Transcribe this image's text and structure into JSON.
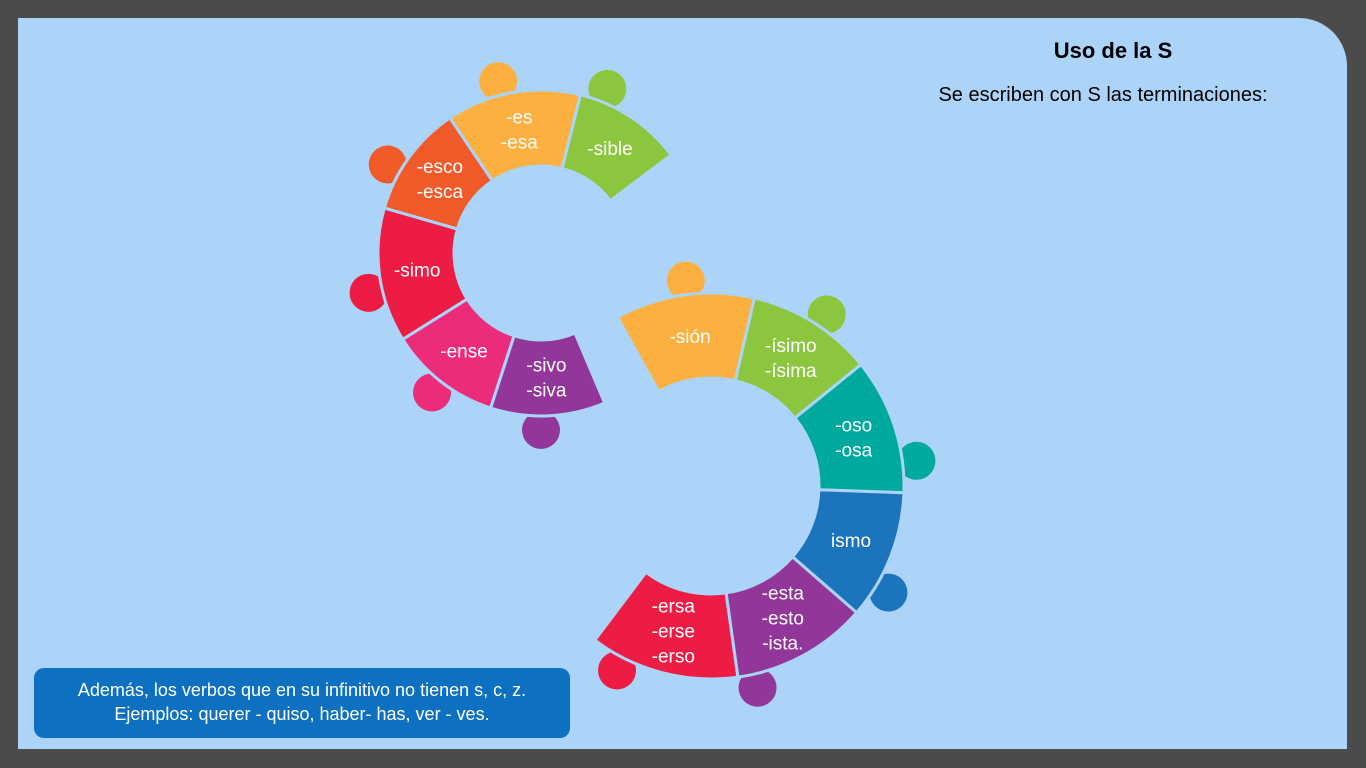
{
  "slide": {
    "title": "Uso de la S",
    "subtitle": "Se escriben con S las terminaciones:",
    "note": {
      "line1": "Además, los verbos que en su infinitivo no tienen s, c, z.",
      "line2": "Ejemplos:  querer - quiso, haber- has, ver - ves."
    }
  },
  "colors": {
    "background": "#acd4f8",
    "frame": "#4b4b4b",
    "note_box": "#0d70c0",
    "text_on_pieces": "#ffffff"
  },
  "pieces": [
    {
      "id": "sible",
      "lines": [
        "-sible"
      ],
      "color": "#8cc63f"
    },
    {
      "id": "es",
      "lines": [
        "-es",
        "-esa"
      ],
      "color": "#fbb040"
    },
    {
      "id": "esco",
      "lines": [
        "-esco",
        "-esca"
      ],
      "color": "#f15a29"
    },
    {
      "id": "simo",
      "lines": [
        "-simo"
      ],
      "color": "#ed1c45"
    },
    {
      "id": "ense",
      "lines": [
        "-ense"
      ],
      "color": "#ec2c7b"
    },
    {
      "id": "sivo",
      "lines": [
        "-sivo",
        "-siva"
      ],
      "color": "#92369a"
    },
    {
      "id": "sion",
      "lines": [
        "-sión"
      ],
      "color": "#fbb040"
    },
    {
      "id": "isimo",
      "lines": [
        "-ísimo",
        "-ísima"
      ],
      "color": "#8cc63f"
    },
    {
      "id": "oso",
      "lines": [
        "-oso",
        "-osa"
      ],
      "color": "#00a99d"
    },
    {
      "id": "ismo",
      "lines": [
        "ismo"
      ],
      "color": "#1c75bc"
    },
    {
      "id": "esta",
      "lines": [
        "-esta",
        "-esto",
        "-ista."
      ],
      "color": "#92369a"
    },
    {
      "id": "ersa",
      "lines": [
        "-ersa",
        "-erse",
        "-erso"
      ],
      "color": "#ed1c45"
    }
  ]
}
